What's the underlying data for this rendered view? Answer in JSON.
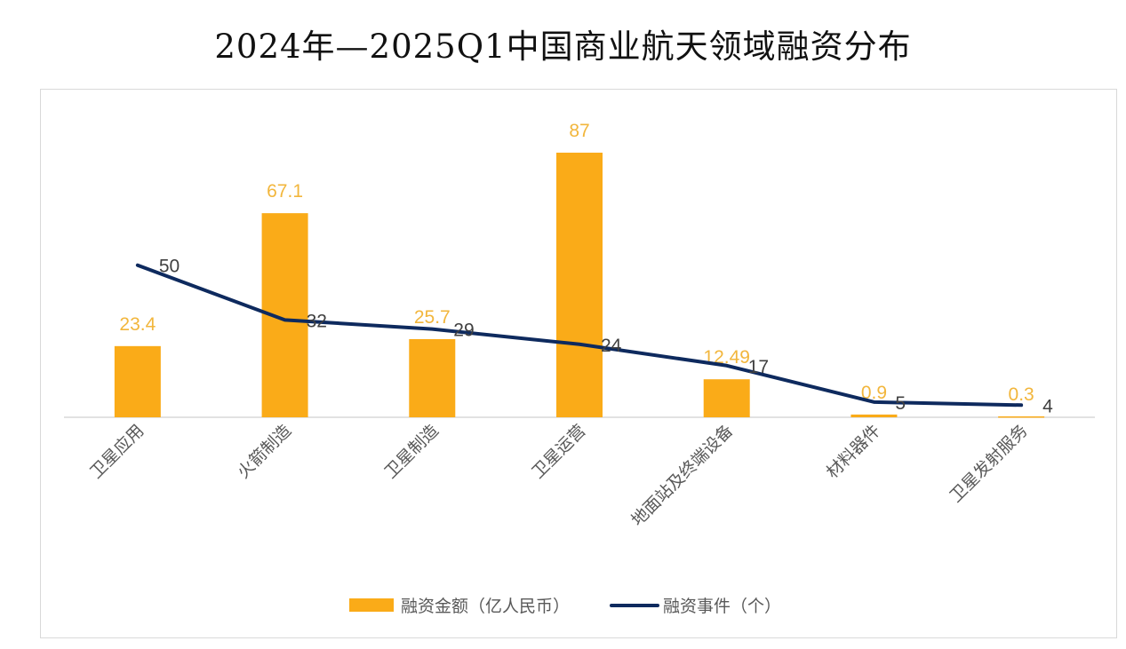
{
  "chart_data": {
    "type": "bar+line",
    "title": "2024年—2025Q1中国商业航天领域融资分布",
    "categories": [
      "卫星应用",
      "火箭制造",
      "卫星制造",
      "卫星运营",
      "地面站及终端设备",
      "材料器件",
      "卫星发射服务"
    ],
    "series": [
      {
        "name": "融资金额（亿人民币）",
        "type": "bar",
        "color": "#FAAB18",
        "label_color": "#F2B63C",
        "values": [
          23.4,
          67.1,
          25.7,
          87,
          12.49,
          0.9,
          0.3
        ],
        "labels": [
          "23.4",
          "67.1",
          "25.7",
          "87",
          "12.49",
          "0.9",
          "0.3"
        ]
      },
      {
        "name": "融资事件（个）",
        "type": "line",
        "color": "#0E2A5E",
        "label_color": "#404040",
        "values": [
          50,
          32,
          29,
          24,
          17,
          5,
          4
        ],
        "labels": [
          "50",
          "32",
          "29",
          "24",
          "17",
          "5",
          "4"
        ]
      }
    ],
    "ylim": [
      0,
      108
    ],
    "grid": false,
    "legend": "bottom",
    "xlabel": "",
    "ylabel": ""
  }
}
